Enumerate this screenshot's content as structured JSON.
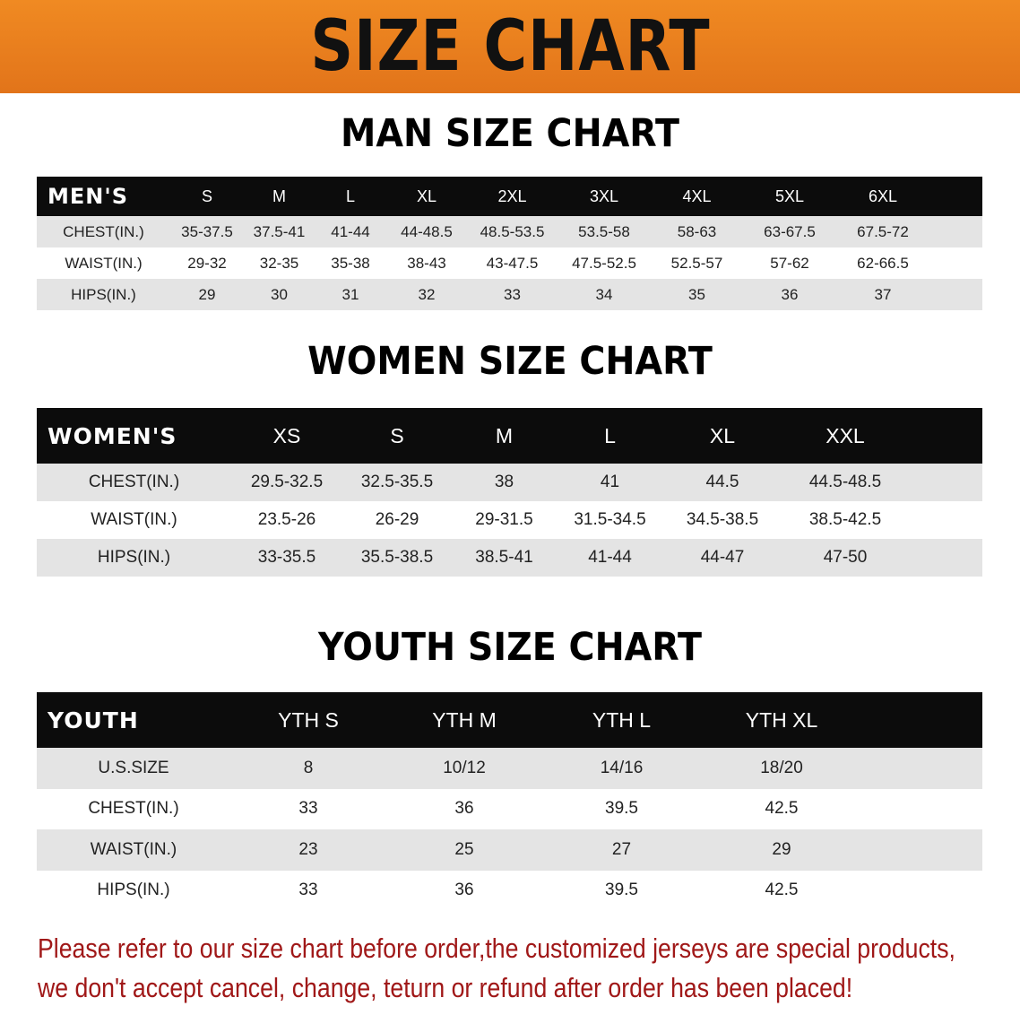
{
  "banner_title": "SIZE CHART",
  "tables": [
    {
      "title": "MAN SIZE CHART",
      "header": [
        "MEN'S",
        "S",
        "M",
        "L",
        "XL",
        "2XL",
        "3XL",
        "4XL",
        "5XL",
        "6XL"
      ],
      "rows": [
        [
          "CHEST(IN.)",
          "35-37.5",
          "37.5-41",
          "41-44",
          "44-48.5",
          "48.5-53.5",
          "53.5-58",
          "58-63",
          "63-67.5",
          "67.5-72"
        ],
        [
          "WAIST(IN.)",
          "29-32",
          "32-35",
          "35-38",
          "38-43",
          "43-47.5",
          "47.5-52.5",
          "52.5-57",
          "57-62",
          "62-66.5"
        ],
        [
          "HIPS(IN.)",
          "29",
          "30",
          "31",
          "32",
          "33",
          "34",
          "35",
          "36",
          "37"
        ]
      ]
    },
    {
      "title": "WOMEN SIZE CHART",
      "header": [
        "WOMEN'S",
        "XS",
        "S",
        "M",
        "L",
        "XL",
        "XXL"
      ],
      "rows": [
        [
          "CHEST(IN.)",
          "29.5-32.5",
          "32.5-35.5",
          "38",
          "41",
          "44.5",
          "44.5-48.5"
        ],
        [
          "WAIST(IN.)",
          "23.5-26",
          "26-29",
          "29-31.5",
          "31.5-34.5",
          "34.5-38.5",
          "38.5-42.5"
        ],
        [
          "HIPS(IN.)",
          "33-35.5",
          "35.5-38.5",
          "38.5-41",
          "41-44",
          "44-47",
          "47-50"
        ]
      ]
    },
    {
      "title": "YOUTH SIZE CHART",
      "header": [
        "YOUTH",
        "YTH S",
        "YTH M",
        "YTH L",
        "YTH XL"
      ],
      "rows": [
        [
          "U.S.SIZE",
          "8",
          "10/12",
          "14/16",
          "18/20"
        ],
        [
          "CHEST(IN.)",
          "33",
          "36",
          "39.5",
          "42.5"
        ],
        [
          "WAIST(IN.)",
          "23",
          "25",
          "27",
          "29"
        ],
        [
          "HIPS(IN.)",
          "33",
          "36",
          "39.5",
          "42.5"
        ]
      ]
    }
  ],
  "notice": {
    "line1": "Please refer to our size chart before order,the customized jerseys are special products,",
    "line2": "we don't accept cancel, change, teturn or refund after order has been placed!"
  },
  "colors": {
    "banner": "#e87c1e",
    "header_row": "#0c0c0c",
    "stripe": "#e4e4e4",
    "notice": "#a01818"
  }
}
